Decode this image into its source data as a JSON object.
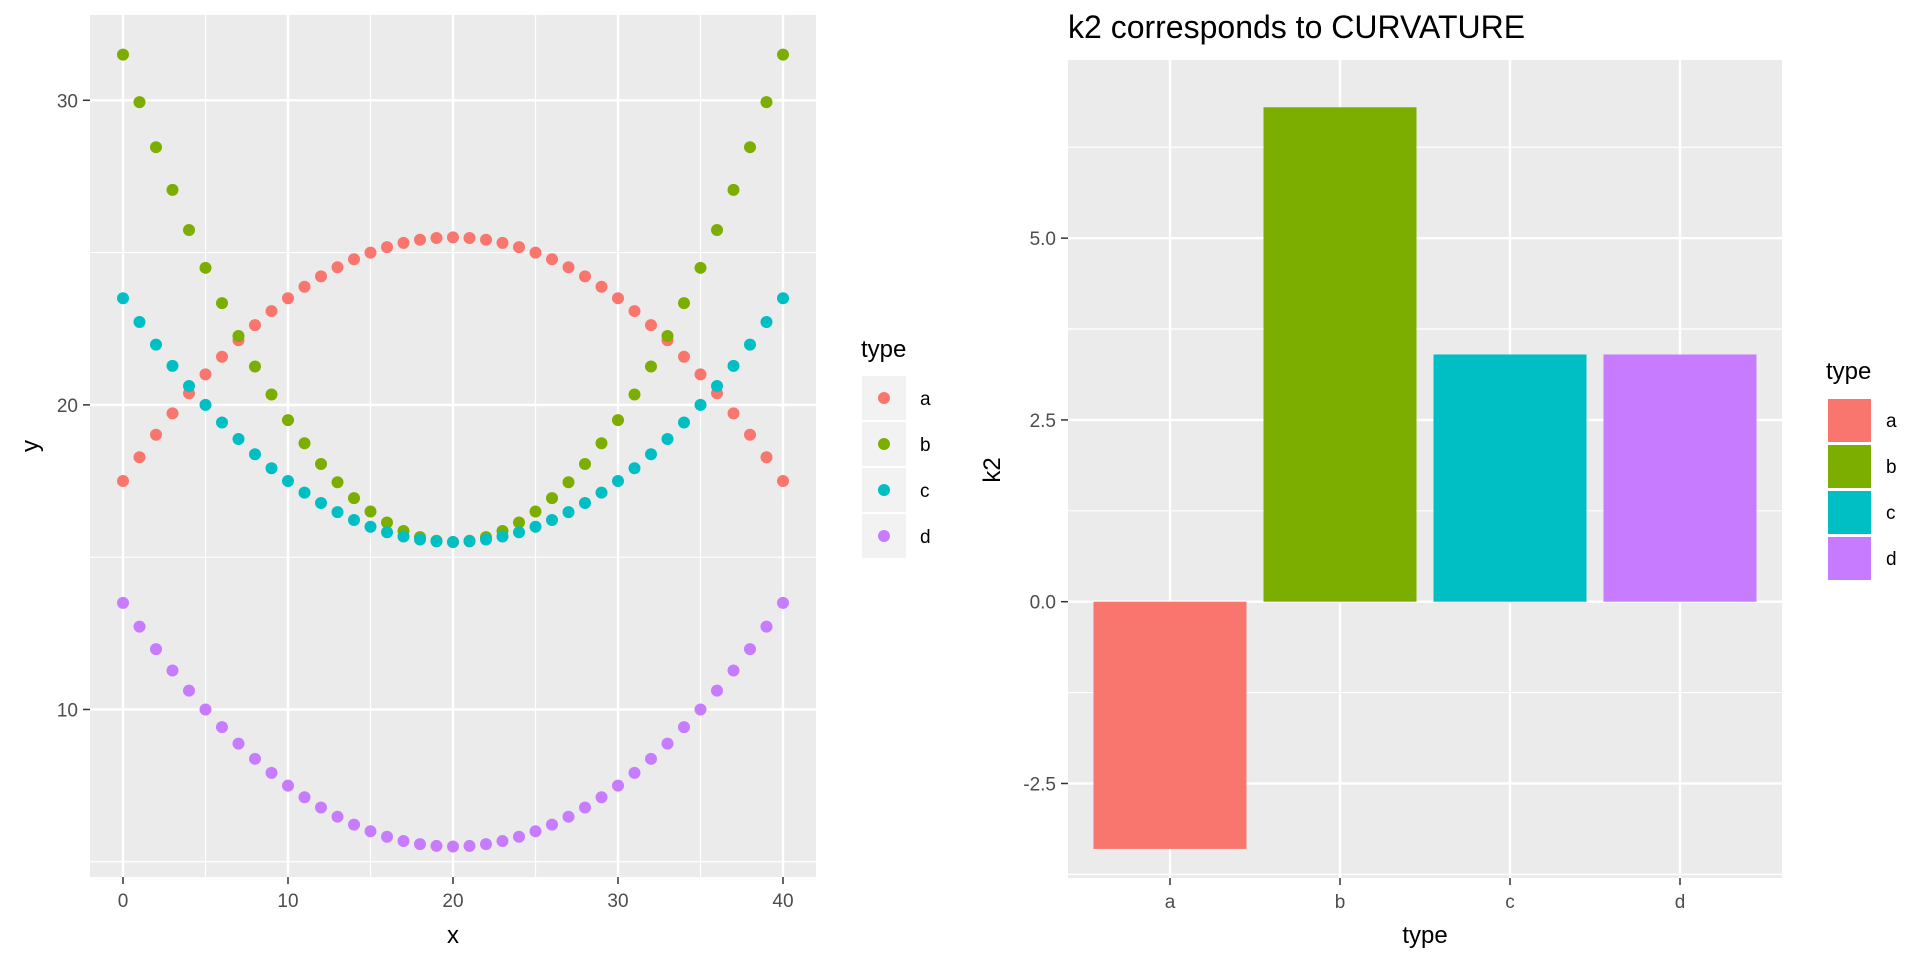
{
  "chart_data": [
    {
      "type": "scatter",
      "title": "",
      "xlabel": "x",
      "ylabel": "y",
      "xlim": [
        -2,
        42
      ],
      "ylim": [
        4.5,
        32.8
      ],
      "xticks": [
        0,
        10,
        20,
        30,
        40
      ],
      "yticks": [
        10,
        20,
        30
      ],
      "grid": true,
      "legend": {
        "title": "type",
        "placement": "right"
      },
      "x": [
        0,
        1,
        2,
        3,
        4,
        5,
        6,
        7,
        8,
        9,
        10,
        11,
        12,
        13,
        14,
        15,
        16,
        17,
        18,
        19,
        20,
        21,
        22,
        23,
        24,
        25,
        26,
        27,
        28,
        29,
        30,
        31,
        32,
        33,
        34,
        35,
        36,
        37,
        38,
        39,
        40
      ],
      "series": [
        {
          "name": "a",
          "color": "#F8766D",
          "values": [
            17.5,
            18.28,
            19.02,
            19.72,
            20.38,
            21.0,
            21.58,
            22.12,
            22.62,
            23.08,
            23.5,
            23.88,
            24.22,
            24.52,
            24.78,
            25.0,
            25.18,
            25.32,
            25.42,
            25.48,
            25.5,
            25.48,
            25.42,
            25.32,
            25.18,
            25.0,
            24.78,
            24.52,
            24.22,
            23.88,
            23.5,
            23.08,
            22.62,
            22.12,
            21.58,
            21.0,
            20.38,
            19.72,
            19.02,
            18.28,
            17.5
          ]
        },
        {
          "name": "b",
          "color": "#7CAE00",
          "values": [
            31.5,
            29.94,
            28.46,
            27.06,
            25.74,
            24.5,
            23.34,
            22.26,
            21.26,
            20.34,
            19.5,
            18.74,
            18.06,
            17.46,
            16.94,
            16.5,
            16.14,
            15.86,
            15.66,
            15.54,
            15.5,
            15.54,
            15.66,
            15.86,
            16.14,
            16.5,
            16.94,
            17.46,
            18.06,
            18.74,
            19.5,
            20.34,
            21.26,
            22.26,
            23.34,
            24.5,
            25.74,
            27.06,
            28.46,
            29.94,
            31.5
          ]
        },
        {
          "name": "c",
          "color": "#00BFC4",
          "values": [
            23.5,
            22.72,
            21.98,
            21.28,
            20.62,
            20.0,
            19.42,
            18.88,
            18.38,
            17.92,
            17.5,
            17.12,
            16.78,
            16.48,
            16.22,
            16.0,
            15.82,
            15.68,
            15.58,
            15.52,
            15.5,
            15.52,
            15.58,
            15.68,
            15.82,
            16.0,
            16.22,
            16.48,
            16.78,
            17.12,
            17.5,
            17.92,
            18.38,
            18.88,
            19.42,
            20.0,
            20.62,
            21.28,
            21.98,
            22.72,
            23.5
          ]
        },
        {
          "name": "d",
          "color": "#C77CFF",
          "values": [
            13.5,
            12.72,
            11.98,
            11.28,
            10.62,
            10.0,
            9.42,
            8.88,
            8.38,
            7.92,
            7.5,
            7.12,
            6.78,
            6.48,
            6.22,
            6.0,
            5.82,
            5.68,
            5.58,
            5.52,
            5.5,
            5.52,
            5.58,
            5.68,
            5.82,
            6.0,
            6.22,
            6.48,
            6.78,
            7.12,
            7.5,
            7.92,
            8.38,
            8.88,
            9.42,
            10.0,
            10.62,
            11.28,
            11.98,
            12.72,
            13.5
          ]
        }
      ]
    },
    {
      "type": "bar",
      "title": "k2 corresponds to CURVATURE",
      "xlabel": "type",
      "ylabel": "k2",
      "ylim": [
        -3.8,
        7.45
      ],
      "yticks": [
        -2.5,
        0.0,
        2.5,
        5.0
      ],
      "yticklabels": [
        "-2.5",
        "0.0",
        "2.5",
        "5.0"
      ],
      "grid": true,
      "legend": {
        "title": "type",
        "placement": "right"
      },
      "categories": [
        "a",
        "b",
        "c",
        "d"
      ],
      "values": [
        -3.4,
        6.8,
        3.4,
        3.4
      ],
      "colors": [
        "#F8766D",
        "#7CAE00",
        "#00BFC4",
        "#C77CFF"
      ]
    }
  ]
}
